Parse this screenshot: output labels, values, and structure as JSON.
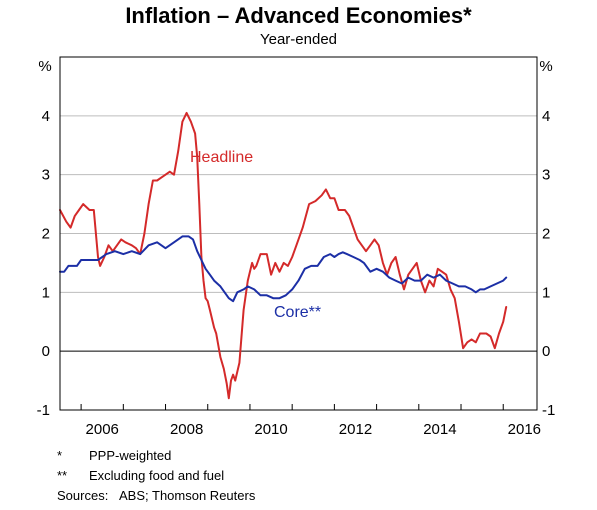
{
  "chart_data": {
    "type": "line",
    "title": "Inflation – Advanced Economies*",
    "subtitle": "Year-ended",
    "unit_left": "%",
    "unit_right": "%",
    "ylim": [
      -1,
      5
    ],
    "yticks": [
      -1,
      0,
      1,
      2,
      3,
      4
    ],
    "xlim": [
      2005.5,
      2016.8
    ],
    "xticks": [
      2006,
      2008,
      2010,
      2012,
      2014,
      2016
    ],
    "grid": true,
    "series": [
      {
        "name": "Headline",
        "color": "#d42a2a",
        "points": [
          [
            2005.5,
            2.4
          ],
          [
            2005.65,
            2.2
          ],
          [
            2005.75,
            2.1
          ],
          [
            2005.85,
            2.3
          ],
          [
            2005.95,
            2.4
          ],
          [
            2006.05,
            2.5
          ],
          [
            2006.2,
            2.4
          ],
          [
            2006.3,
            2.4
          ],
          [
            2006.4,
            1.6
          ],
          [
            2006.45,
            1.45
          ],
          [
            2006.55,
            1.6
          ],
          [
            2006.65,
            1.8
          ],
          [
            2006.75,
            1.7
          ],
          [
            2006.85,
            1.8
          ],
          [
            2006.95,
            1.9
          ],
          [
            2007.05,
            1.85
          ],
          [
            2007.2,
            1.8
          ],
          [
            2007.3,
            1.75
          ],
          [
            2007.4,
            1.65
          ],
          [
            2007.5,
            2.0
          ],
          [
            2007.6,
            2.5
          ],
          [
            2007.7,
            2.9
          ],
          [
            2007.8,
            2.9
          ],
          [
            2007.9,
            2.95
          ],
          [
            2008.0,
            3.0
          ],
          [
            2008.1,
            3.05
          ],
          [
            2008.2,
            3.0
          ],
          [
            2008.3,
            3.4
          ],
          [
            2008.4,
            3.9
          ],
          [
            2008.5,
            4.05
          ],
          [
            2008.6,
            3.9
          ],
          [
            2008.7,
            3.7
          ],
          [
            2008.75,
            3.3
          ],
          [
            2008.8,
            2.5
          ],
          [
            2008.85,
            1.6
          ],
          [
            2008.9,
            1.2
          ],
          [
            2008.95,
            0.9
          ],
          [
            2009.0,
            0.85
          ],
          [
            2009.05,
            0.7
          ],
          [
            2009.15,
            0.4
          ],
          [
            2009.2,
            0.3
          ],
          [
            2009.3,
            -0.1
          ],
          [
            2009.38,
            -0.3
          ],
          [
            2009.45,
            -0.55
          ],
          [
            2009.5,
            -0.8
          ],
          [
            2009.55,
            -0.5
          ],
          [
            2009.6,
            -0.4
          ],
          [
            2009.65,
            -0.5
          ],
          [
            2009.75,
            -0.2
          ],
          [
            2009.85,
            0.7
          ],
          [
            2009.95,
            1.2
          ],
          [
            2010.05,
            1.5
          ],
          [
            2010.1,
            1.4
          ],
          [
            2010.15,
            1.45
          ],
          [
            2010.25,
            1.65
          ],
          [
            2010.4,
            1.65
          ],
          [
            2010.5,
            1.3
          ],
          [
            2010.6,
            1.5
          ],
          [
            2010.7,
            1.35
          ],
          [
            2010.8,
            1.5
          ],
          [
            2010.9,
            1.45
          ],
          [
            2011.0,
            1.6
          ],
          [
            2011.1,
            1.8
          ],
          [
            2011.25,
            2.1
          ],
          [
            2011.4,
            2.5
          ],
          [
            2011.55,
            2.55
          ],
          [
            2011.7,
            2.65
          ],
          [
            2011.8,
            2.75
          ],
          [
            2011.9,
            2.6
          ],
          [
            2012.0,
            2.6
          ],
          [
            2012.1,
            2.4
          ],
          [
            2012.25,
            2.4
          ],
          [
            2012.35,
            2.3
          ],
          [
            2012.45,
            2.1
          ],
          [
            2012.55,
            1.9
          ],
          [
            2012.65,
            1.8
          ],
          [
            2012.75,
            1.7
          ],
          [
            2012.85,
            1.8
          ],
          [
            2012.95,
            1.9
          ],
          [
            2013.05,
            1.8
          ],
          [
            2013.15,
            1.5
          ],
          [
            2013.25,
            1.3
          ],
          [
            2013.35,
            1.5
          ],
          [
            2013.45,
            1.6
          ],
          [
            2013.55,
            1.3
          ],
          [
            2013.65,
            1.05
          ],
          [
            2013.75,
            1.3
          ],
          [
            2013.85,
            1.4
          ],
          [
            2013.95,
            1.5
          ],
          [
            2014.05,
            1.2
          ],
          [
            2014.15,
            1.0
          ],
          [
            2014.25,
            1.2
          ],
          [
            2014.35,
            1.1
          ],
          [
            2014.45,
            1.4
          ],
          [
            2014.55,
            1.35
          ],
          [
            2014.65,
            1.3
          ],
          [
            2014.75,
            1.05
          ],
          [
            2014.85,
            0.9
          ],
          [
            2014.95,
            0.5
          ],
          [
            2015.05,
            0.05
          ],
          [
            2015.15,
            0.15
          ],
          [
            2015.25,
            0.2
          ],
          [
            2015.35,
            0.15
          ],
          [
            2015.45,
            0.3
          ],
          [
            2015.6,
            0.3
          ],
          [
            2015.7,
            0.25
          ],
          [
            2015.8,
            0.05
          ],
          [
            2015.9,
            0.3
          ],
          [
            2016.0,
            0.5
          ],
          [
            2016.07,
            0.75
          ]
        ]
      },
      {
        "name": "Core**",
        "color": "#1c2fa6",
        "points": [
          [
            2005.5,
            1.35
          ],
          [
            2005.6,
            1.35
          ],
          [
            2005.7,
            1.45
          ],
          [
            2005.8,
            1.45
          ],
          [
            2005.9,
            1.45
          ],
          [
            2006.0,
            1.55
          ],
          [
            2006.2,
            1.55
          ],
          [
            2006.4,
            1.55
          ],
          [
            2006.6,
            1.65
          ],
          [
            2006.8,
            1.7
          ],
          [
            2007.0,
            1.65
          ],
          [
            2007.2,
            1.7
          ],
          [
            2007.4,
            1.65
          ],
          [
            2007.6,
            1.8
          ],
          [
            2007.8,
            1.85
          ],
          [
            2008.0,
            1.75
          ],
          [
            2008.2,
            1.85
          ],
          [
            2008.4,
            1.95
          ],
          [
            2008.55,
            1.95
          ],
          [
            2008.65,
            1.9
          ],
          [
            2008.75,
            1.7
          ],
          [
            2008.85,
            1.55
          ],
          [
            2008.95,
            1.4
          ],
          [
            2009.05,
            1.3
          ],
          [
            2009.15,
            1.2
          ],
          [
            2009.3,
            1.1
          ],
          [
            2009.4,
            1.0
          ],
          [
            2009.5,
            0.9
          ],
          [
            2009.6,
            0.85
          ],
          [
            2009.7,
            1.0
          ],
          [
            2009.85,
            1.05
          ],
          [
            2009.95,
            1.1
          ],
          [
            2010.1,
            1.05
          ],
          [
            2010.25,
            0.95
          ],
          [
            2010.4,
            0.95
          ],
          [
            2010.55,
            0.9
          ],
          [
            2010.7,
            0.9
          ],
          [
            2010.85,
            0.95
          ],
          [
            2011.0,
            1.05
          ],
          [
            2011.15,
            1.2
          ],
          [
            2011.3,
            1.4
          ],
          [
            2011.45,
            1.45
          ],
          [
            2011.6,
            1.45
          ],
          [
            2011.75,
            1.6
          ],
          [
            2011.9,
            1.65
          ],
          [
            2012.0,
            1.6
          ],
          [
            2012.1,
            1.65
          ],
          [
            2012.2,
            1.68
          ],
          [
            2012.3,
            1.65
          ],
          [
            2012.45,
            1.6
          ],
          [
            2012.6,
            1.55
          ],
          [
            2012.7,
            1.5
          ],
          [
            2012.85,
            1.35
          ],
          [
            2013.0,
            1.4
          ],
          [
            2013.15,
            1.35
          ],
          [
            2013.3,
            1.25
          ],
          [
            2013.45,
            1.2
          ],
          [
            2013.6,
            1.15
          ],
          [
            2013.75,
            1.25
          ],
          [
            2013.9,
            1.2
          ],
          [
            2014.05,
            1.2
          ],
          [
            2014.2,
            1.3
          ],
          [
            2014.35,
            1.25
          ],
          [
            2014.5,
            1.3
          ],
          [
            2014.65,
            1.2
          ],
          [
            2014.8,
            1.15
          ],
          [
            2014.95,
            1.1
          ],
          [
            2015.1,
            1.1
          ],
          [
            2015.25,
            1.05
          ],
          [
            2015.35,
            1.0
          ],
          [
            2015.45,
            1.05
          ],
          [
            2015.55,
            1.05
          ],
          [
            2015.7,
            1.1
          ],
          [
            2015.85,
            1.15
          ],
          [
            2016.0,
            1.2
          ],
          [
            2016.07,
            1.25
          ]
        ]
      }
    ]
  },
  "notes": [
    {
      "mark": "*",
      "text": "PPP-weighted"
    },
    {
      "mark": "**",
      "text": "Excluding food and fuel"
    }
  ],
  "sources": {
    "label": "Sources:",
    "text": "ABS; Thomson Reuters"
  }
}
